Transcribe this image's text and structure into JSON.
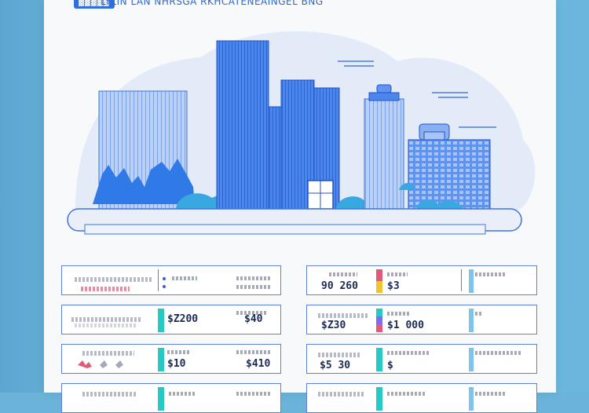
{
  "header": {
    "badge": "▓▓▓▓▓",
    "title": "LYLIN LAN NHRSGA RKHCATENEAINGEL BNG"
  },
  "palette": {
    "building_primary": "#3d7be8",
    "building_light": "#a9c6f7",
    "tree": "#39a8e0",
    "ground": "#e9eef8",
    "outline": "#5c7fe0",
    "accent_red": "#de5b7b",
    "accent_teal": "#27c9c4"
  },
  "left_panel": {
    "rows": [
      {
        "value_a": "",
        "value_b": ""
      },
      {
        "value_a": "$Z200",
        "value_b": "$40"
      },
      {
        "value_a": "$10",
        "value_b": "$410"
      },
      {
        "value_a": "",
        "value_b": ""
      }
    ]
  },
  "right_panel": {
    "rows": [
      {
        "label": "",
        "value_a": "90 260",
        "value_b": "$3"
      },
      {
        "label": "",
        "value_a": "$Z30",
        "value_b": "$1 000"
      },
      {
        "label": "",
        "value_a": "$5 30",
        "value_b": "$"
      },
      {
        "label": "",
        "value_a": "",
        "value_b": ""
      }
    ]
  }
}
